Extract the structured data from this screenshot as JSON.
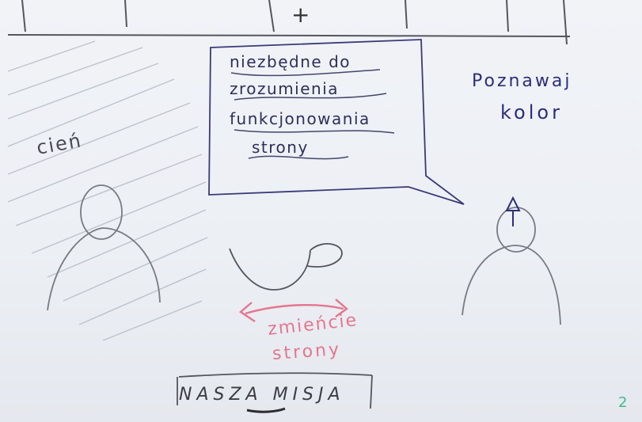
{
  "sketch": {
    "header_symbol": "+",
    "speech_bubble": {
      "lines": [
        "niezbędne do",
        "zrozumienia",
        "funkcjonowania",
        "strony"
      ]
    },
    "shadow_label": "cień",
    "right_label": {
      "line1": "Poznawaj",
      "line2": "kolor"
    },
    "swipe_note": {
      "line1": "zmieńcie",
      "line2": "strony"
    },
    "mission_button": "NASZA MISJA",
    "page_number": "2",
    "colors": {
      "pencil": "#7a7a84",
      "ink_blue": "#2f2f7a",
      "pink": "#e4768e",
      "green": "#3dba8f"
    }
  }
}
